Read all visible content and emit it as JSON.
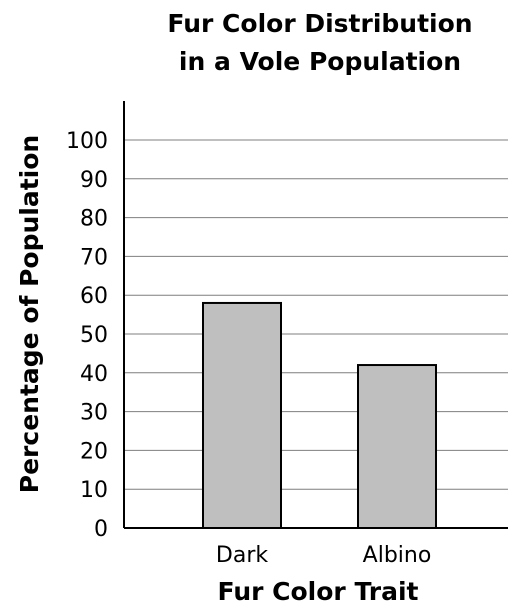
{
  "chart_data": {
    "type": "bar",
    "title_line1": "Fur Color Distribution",
    "title_line2": "in a Vole Population",
    "xlabel": "Fur Color Trait",
    "ylabel": "Percentage of Population",
    "categories": [
      "Dark",
      "Albino"
    ],
    "values": [
      58,
      42
    ],
    "ylim": [
      0,
      100
    ],
    "yticks": [
      "0",
      "10",
      "20",
      "30",
      "40",
      "50",
      "60",
      "70",
      "80",
      "90",
      "100"
    ],
    "grid": true,
    "bar_color": "#bfbfbf",
    "legend": "none"
  }
}
